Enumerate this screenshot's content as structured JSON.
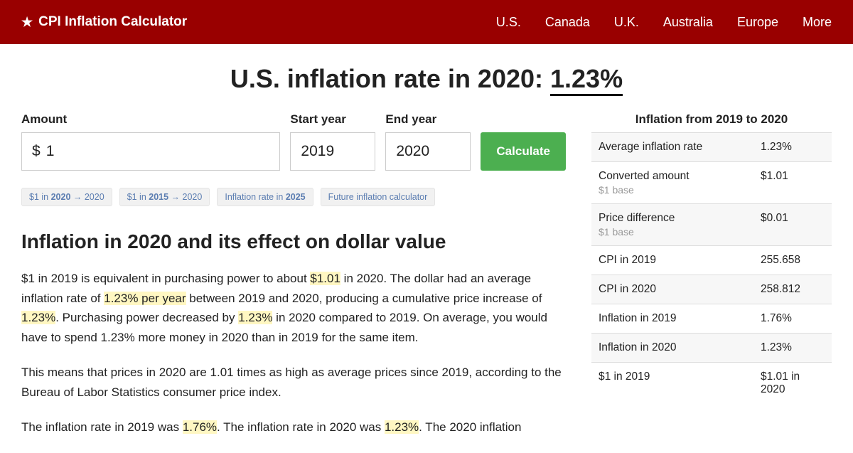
{
  "header": {
    "brand": "CPI Inflation Calculator",
    "nav": [
      "U.S.",
      "Canada",
      "U.K.",
      "Australia",
      "Europe",
      "More"
    ]
  },
  "title": {
    "prefix": "U.S. inflation rate in 2020: ",
    "rate": "1.23%"
  },
  "calc": {
    "amount_label": "Amount",
    "currency": "$",
    "amount_value": "1",
    "start_label": "Start year",
    "start_value": "2019",
    "end_label": "End year",
    "end_value": "2020",
    "button": "Calculate"
  },
  "pills": {
    "p1a": "$1 in ",
    "p1b": "2020",
    "p1c": " → 2020",
    "p2a": "$1 in ",
    "p2b": "2015",
    "p2c": " → 2020",
    "p3a": "Inflation rate in ",
    "p3b": "2025",
    "p4": "Future inflation calculator"
  },
  "section_heading": "Inflation in 2020 and its effect on dollar value",
  "para1": {
    "t1": "$1 in 2019 is equivalent in purchasing power to about ",
    "h1": "$1.01",
    "t2": " in 2020. The dollar had an average inflation rate of ",
    "h2": "1.23% per year",
    "t3": " between 2019 and 2020, producing a cumulative price increase of ",
    "h3": "1.23%",
    "t4": ". Purchasing power decreased by ",
    "h4": "1.23%",
    "t5": " in 2020 compared to 2019. On average, you would have to spend 1.23% more money in 2020 than in 2019 for the same item."
  },
  "para2": "This means that prices in 2020 are 1.01 times as high as average prices since 2019, according to the Bureau of Labor Statistics consumer price index.",
  "para3": {
    "t1": "The inflation rate in 2019 was ",
    "h1": "1.76%",
    "t2": ". The inflation rate in 2020 was ",
    "h2": "1.23%",
    "t3": ". The 2020 inflation"
  },
  "table": {
    "title": "Inflation from 2019 to 2020",
    "rows": [
      {
        "label": "Average inflation rate",
        "sub": "",
        "value": "1.23%"
      },
      {
        "label": "Converted amount",
        "sub": "$1 base",
        "value": "$1.01"
      },
      {
        "label": "Price difference",
        "sub": "$1 base",
        "value": "$0.01"
      },
      {
        "label": "CPI in 2019",
        "sub": "",
        "value": "255.658"
      },
      {
        "label": "CPI in 2020",
        "sub": "",
        "value": "258.812"
      },
      {
        "label": "Inflation in 2019",
        "sub": "",
        "value": "1.76%"
      },
      {
        "label": "Inflation in 2020",
        "sub": "",
        "value": "1.23%"
      },
      {
        "label": "$1 in 2019",
        "sub": "",
        "value": "$1.01 in 2020"
      }
    ]
  }
}
